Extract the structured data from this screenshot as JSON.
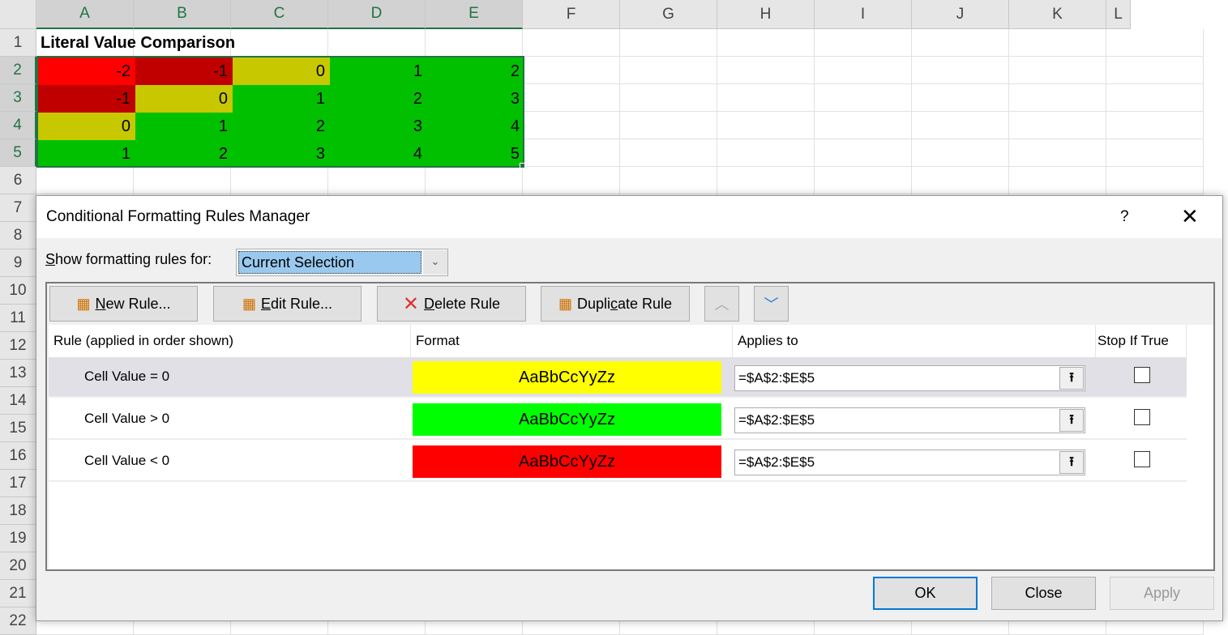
{
  "sheet": {
    "columns": [
      "A",
      "B",
      "C",
      "D",
      "E",
      "F",
      "G",
      "H",
      "I",
      "J",
      "K",
      "L"
    ],
    "rows": [
      "1",
      "2",
      "3",
      "4",
      "5",
      "6",
      "7",
      "8",
      "9",
      "10",
      "11",
      "12",
      "13",
      "14",
      "15",
      "16",
      "17",
      "18",
      "19",
      "20",
      "21",
      "22"
    ],
    "title": "Literal Value Comparison",
    "values": [
      [
        -2,
        -1,
        0,
        1,
        2
      ],
      [
        -1,
        0,
        1,
        2,
        3
      ],
      [
        0,
        1,
        2,
        3,
        4
      ],
      [
        1,
        2,
        3,
        4,
        5
      ]
    ],
    "colors": {
      "neg2": "#ff0000",
      "neg1": "#c00000",
      "zero": "#c8c800",
      "pos": "#00c000"
    }
  },
  "dialog": {
    "title": "Conditional Formatting Rules Manager",
    "help": "?",
    "show_label_prefix": "S",
    "show_label_rest": "how formatting rules for:",
    "show_value": "Current Selection",
    "toolbar": {
      "new_u": "N",
      "new_rest": "ew Rule...",
      "edit_u": "E",
      "edit_rest": "dit Rule...",
      "delete_u": "D",
      "delete_rest": "elete Rule",
      "dup_pre": "Dupli",
      "dup_u": "c",
      "dup_rest": "ate Rule"
    },
    "headers": {
      "rule": "Rule (applied in order shown)",
      "format": "Format",
      "applies": "Applies to",
      "stop": "Stop If True"
    },
    "rules": [
      {
        "rule": "Cell Value = 0",
        "preview": "AaBbCcYyZz",
        "fill": "#ffff00",
        "applies": "=$A$2:$E$5",
        "stop": false
      },
      {
        "rule": "Cell Value > 0",
        "preview": "AaBbCcYyZz",
        "fill": "#00ff00",
        "applies": "=$A$2:$E$5",
        "stop": false
      },
      {
        "rule": "Cell Value < 0",
        "preview": "AaBbCcYyZz",
        "fill": "#ff0000",
        "applies": "=$A$2:$E$5",
        "stop": false
      }
    ],
    "buttons": {
      "ok": "OK",
      "close": "Close",
      "apply": "Apply"
    }
  }
}
